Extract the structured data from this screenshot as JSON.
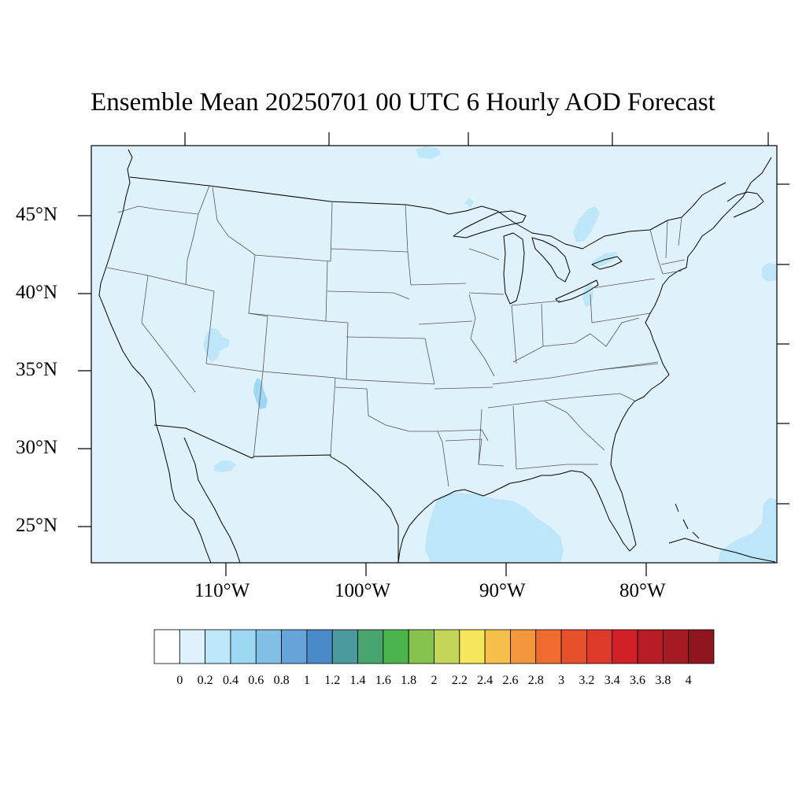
{
  "title": "Ensemble Mean 20250701 00 UTC 6 Hourly AOD Forecast",
  "map": {
    "projection": "lambert-conformal",
    "region": "contiguous-united-states",
    "features": [
      "coastlines",
      "country-borders",
      "state-boundaries",
      "great-lakes"
    ],
    "lat_labels": [
      "45°N",
      "40°N",
      "35°N",
      "30°N",
      "25°N"
    ],
    "lon_labels": [
      "110°W",
      "100°W",
      "90°W",
      "80°W"
    ],
    "background_field_color": "#dff2fb",
    "background_field_bin": "0.2",
    "plumes": [
      {
        "location": "gulf-of-mexico",
        "bin": "0.2-0.4"
      },
      {
        "location": "utah",
        "bin": "0.2-0.4"
      },
      {
        "location": "new-mexico",
        "bin": "0.4-0.6"
      },
      {
        "location": "lake-huron-michigan",
        "bin": "0.2-0.4"
      },
      {
        "location": "western-atlantic",
        "bin": "0.2-0.4"
      },
      {
        "location": "lake-erie-ohio",
        "bin": "0.2-0.4"
      }
    ]
  },
  "colorbar": {
    "labels": [
      "0",
      "0.2",
      "0.4",
      "0.6",
      "0.8",
      "1",
      "1.2",
      "1.4",
      "1.6",
      "1.8",
      "2",
      "2.2",
      "2.4",
      "2.6",
      "2.8",
      "3",
      "3.2",
      "3.4",
      "3.6",
      "3.8",
      "4"
    ],
    "colors": [
      "#ffffff",
      "#dff2fb",
      "#bde6f8",
      "#9dd7f4",
      "#82bfe7",
      "#65a3d9",
      "#4a8ac8",
      "#4b9a9e",
      "#48a56f",
      "#4bb44a",
      "#86c24d",
      "#c4d65a",
      "#f5e65c",
      "#f5bf4a",
      "#f3963c",
      "#f06b30",
      "#e8502c",
      "#de3a2a",
      "#d22029",
      "#b81c26",
      "#a61a23",
      "#8f161f"
    ]
  }
}
